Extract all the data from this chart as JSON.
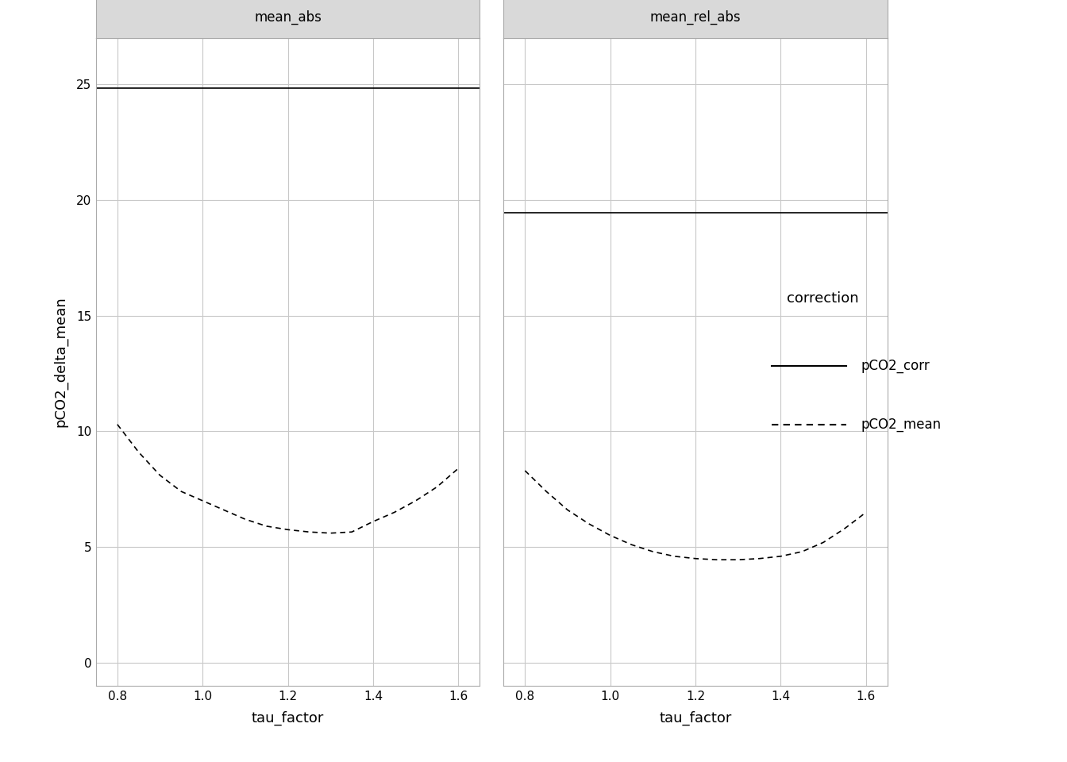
{
  "panels": [
    "mean_abs",
    "mean_rel_abs"
  ],
  "xlabel": "tau_factor",
  "ylabel": "pCO2_delta_mean",
  "xlim": [
    0.75,
    1.65
  ],
  "xticks": [
    0.8,
    1.0,
    1.2,
    1.4,
    1.6
  ],
  "ylim": [
    -1,
    27
  ],
  "yticks": [
    0,
    5,
    10,
    15,
    20,
    25
  ],
  "background_color": "#ffffff",
  "panel_header_color": "#d9d9d9",
  "grid_color": "#c8c8c8",
  "legend_title": "correction",
  "legend_entries": [
    "pCO2_corr",
    "pCO2_mean"
  ],
  "pco2_corr_abs": 24.85,
  "pco2_corr_rel": 19.45,
  "tau_x": [
    0.8,
    0.85,
    0.9,
    0.95,
    1.0,
    1.05,
    1.1,
    1.15,
    1.2,
    1.25,
    1.3,
    1.35,
    1.4,
    1.45,
    1.5,
    1.55,
    1.6
  ],
  "pco2_mean_abs": [
    10.3,
    9.1,
    8.1,
    7.4,
    7.0,
    6.6,
    6.2,
    5.9,
    5.75,
    5.65,
    5.6,
    5.65,
    6.1,
    6.5,
    7.0,
    7.6,
    8.4
  ],
  "pco2_mean_rel": [
    8.3,
    7.4,
    6.6,
    6.0,
    5.5,
    5.1,
    4.8,
    4.6,
    4.5,
    4.45,
    4.45,
    4.5,
    4.6,
    4.8,
    5.2,
    5.8,
    6.5
  ]
}
